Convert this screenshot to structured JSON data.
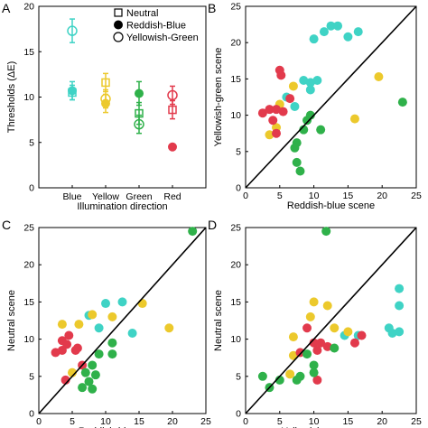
{
  "chart_data": [
    {
      "panel": "A",
      "type": "scatter",
      "xlabel": "Illumination direction",
      "ylabel": "Thresholds (ΔE)",
      "categories": [
        "Blue",
        "Yellow",
        "Green",
        "Red"
      ],
      "ylim": [
        0,
        20
      ],
      "yticks": [
        0,
        5,
        10,
        15,
        20
      ],
      "legend": {
        "placement": "top-right",
        "entries": [
          {
            "marker": "square-open",
            "label": "Neutral"
          },
          {
            "marker": "circle-filled",
            "label": "Reddish-Blue"
          },
          {
            "marker": "circle-open",
            "label": "Yellowish-Green"
          }
        ]
      },
      "colors": {
        "Blue": "#3fd3c5",
        "Yellow": "#ecc92c",
        "Green": "#2fb14a",
        "Red": "#e23a4c"
      },
      "series": [
        {
          "name": "Neutral",
          "marker": "square-open",
          "points": [
            {
              "category": "Blue",
              "y": 10.5,
              "err": 0.8
            },
            {
              "category": "Yellow",
              "y": 11.6,
              "err": 1.0
            },
            {
              "category": "Green",
              "y": 8.2,
              "err": 1.2
            },
            {
              "category": "Red",
              "y": 8.6,
              "err": 1.0
            }
          ]
        },
        {
          "name": "Reddish-Blue",
          "marker": "circle-filled",
          "points": [
            {
              "category": "Blue",
              "y": 10.7,
              "err": 1.0
            },
            {
              "category": "Yellow",
              "y": 9.3,
              "err": 1.0
            },
            {
              "category": "Green",
              "y": 10.4,
              "err": 1.3
            },
            {
              "category": "Red",
              "y": 4.5,
              "err": 0
            }
          ]
        },
        {
          "name": "Yellowish-Green",
          "marker": "circle-open",
          "points": [
            {
              "category": "Blue",
              "y": 17.3,
              "err": 1.3
            },
            {
              "category": "Yellow",
              "y": 9.8,
              "err": 1.0
            },
            {
              "category": "Green",
              "y": 7.0,
              "err": 1.0
            },
            {
              "category": "Red",
              "y": 10.2,
              "err": 1.0
            }
          ]
        }
      ]
    },
    {
      "panel": "B",
      "type": "scatter",
      "xlabel": "Reddish-blue scene",
      "ylabel": "Yellowish-green scene",
      "xlim": [
        0,
        25
      ],
      "ylim": [
        0,
        25
      ],
      "xticks": [
        0,
        5,
        10,
        15,
        20,
        25
      ],
      "yticks": [
        0,
        5,
        10,
        15,
        20,
        25
      ],
      "identity_line": true,
      "points": [
        {
          "x": 10,
          "y": 20.5,
          "color": "#3fd3c5"
        },
        {
          "x": 11.5,
          "y": 21.5,
          "color": "#3fd3c5"
        },
        {
          "x": 12.5,
          "y": 22.3,
          "color": "#3fd3c5"
        },
        {
          "x": 13.5,
          "y": 22.3,
          "color": "#3fd3c5"
        },
        {
          "x": 15,
          "y": 20.8,
          "color": "#3fd3c5"
        },
        {
          "x": 16.5,
          "y": 21.5,
          "color": "#3fd3c5"
        },
        {
          "x": 8.5,
          "y": 14.8,
          "color": "#3fd3c5"
        },
        {
          "x": 9.5,
          "y": 14.5,
          "color": "#3fd3c5"
        },
        {
          "x": 10.5,
          "y": 14.8,
          "color": "#3fd3c5"
        },
        {
          "x": 9.5,
          "y": 13.5,
          "color": "#3fd3c5"
        },
        {
          "x": 6,
          "y": 12.5,
          "color": "#3fd3c5"
        },
        {
          "x": 7.2,
          "y": 11.2,
          "color": "#3fd3c5"
        },
        {
          "x": 19.5,
          "y": 15.3,
          "color": "#ecc92c"
        },
        {
          "x": 16,
          "y": 9.5,
          "color": "#ecc92c"
        },
        {
          "x": 7,
          "y": 14,
          "color": "#ecc92c"
        },
        {
          "x": 5,
          "y": 11.5,
          "color": "#ecc92c"
        },
        {
          "x": 4.5,
          "y": 8.3,
          "color": "#ecc92c"
        },
        {
          "x": 3.5,
          "y": 7.3,
          "color": "#ecc92c"
        },
        {
          "x": 5.2,
          "y": 15.5,
          "color": "#e23a4c"
        },
        {
          "x": 5,
          "y": 16.2,
          "color": "#e23a4c"
        },
        {
          "x": 6.5,
          "y": 12.3,
          "color": "#e23a4c"
        },
        {
          "x": 2.5,
          "y": 10.3,
          "color": "#e23a4c"
        },
        {
          "x": 3.5,
          "y": 10.8,
          "color": "#e23a4c"
        },
        {
          "x": 4.5,
          "y": 10.8,
          "color": "#e23a4c"
        },
        {
          "x": 5.5,
          "y": 10.5,
          "color": "#e23a4c"
        },
        {
          "x": 4,
          "y": 9.3,
          "color": "#e23a4c"
        },
        {
          "x": 4.5,
          "y": 7.5,
          "color": "#e23a4c"
        },
        {
          "x": 23,
          "y": 11.8,
          "color": "#2fb14a"
        },
        {
          "x": 9.5,
          "y": 10,
          "color": "#2fb14a"
        },
        {
          "x": 9,
          "y": 9.3,
          "color": "#2fb14a"
        },
        {
          "x": 8.5,
          "y": 8,
          "color": "#2fb14a"
        },
        {
          "x": 11,
          "y": 8,
          "color": "#2fb14a"
        },
        {
          "x": 7.5,
          "y": 6.2,
          "color": "#2fb14a"
        },
        {
          "x": 7.2,
          "y": 5.5,
          "color": "#2fb14a"
        },
        {
          "x": 7.5,
          "y": 3.5,
          "color": "#2fb14a"
        },
        {
          "x": 8,
          "y": 2.3,
          "color": "#2fb14a"
        }
      ]
    },
    {
      "panel": "C",
      "type": "scatter",
      "xlabel": "Reddish-blue scene",
      "ylabel": "Neutral scene",
      "xlim": [
        0,
        25
      ],
      "ylim": [
        0,
        25
      ],
      "xticks": [
        0,
        5,
        10,
        15,
        20,
        25
      ],
      "yticks": [
        0,
        5,
        10,
        15,
        20,
        25
      ],
      "identity_line": true,
      "points": [
        {
          "x": 23,
          "y": 24.5,
          "color": "#2fb14a"
        },
        {
          "x": 10,
          "y": 14.8,
          "color": "#3fd3c5"
        },
        {
          "x": 12.5,
          "y": 15,
          "color": "#3fd3c5"
        },
        {
          "x": 14,
          "y": 10.8,
          "color": "#3fd3c5"
        },
        {
          "x": 7.5,
          "y": 13.2,
          "color": "#3fd3c5"
        },
        {
          "x": 9,
          "y": 11.5,
          "color": "#3fd3c5"
        },
        {
          "x": 15.5,
          "y": 14.8,
          "color": "#ecc92c"
        },
        {
          "x": 19.5,
          "y": 11.5,
          "color": "#ecc92c"
        },
        {
          "x": 8,
          "y": 13.3,
          "color": "#ecc92c"
        },
        {
          "x": 11,
          "y": 13,
          "color": "#ecc92c"
        },
        {
          "x": 3.5,
          "y": 12,
          "color": "#ecc92c"
        },
        {
          "x": 6,
          "y": 12,
          "color": "#ecc92c"
        },
        {
          "x": 5,
          "y": 5.5,
          "color": "#ecc92c"
        },
        {
          "x": 4.5,
          "y": 10.5,
          "color": "#e23a4c"
        },
        {
          "x": 3.5,
          "y": 9.8,
          "color": "#e23a4c"
        },
        {
          "x": 4.2,
          "y": 9.3,
          "color": "#e23a4c"
        },
        {
          "x": 3.5,
          "y": 8.5,
          "color": "#e23a4c"
        },
        {
          "x": 2.5,
          "y": 8.2,
          "color": "#e23a4c"
        },
        {
          "x": 5.5,
          "y": 8.5,
          "color": "#e23a4c"
        },
        {
          "x": 5.8,
          "y": 8.8,
          "color": "#e23a4c"
        },
        {
          "x": 6.5,
          "y": 6.5,
          "color": "#e23a4c"
        },
        {
          "x": 4,
          "y": 4.5,
          "color": "#e23a4c"
        },
        {
          "x": 11,
          "y": 9.5,
          "color": "#2fb14a"
        },
        {
          "x": 9,
          "y": 8,
          "color": "#2fb14a"
        },
        {
          "x": 11,
          "y": 8,
          "color": "#2fb14a"
        },
        {
          "x": 8,
          "y": 6.5,
          "color": "#2fb14a"
        },
        {
          "x": 7,
          "y": 5.5,
          "color": "#2fb14a"
        },
        {
          "x": 8.5,
          "y": 5.2,
          "color": "#2fb14a"
        },
        {
          "x": 7.5,
          "y": 4.3,
          "color": "#2fb14a"
        },
        {
          "x": 6.5,
          "y": 3.5,
          "color": "#2fb14a"
        },
        {
          "x": 8,
          "y": 3.3,
          "color": "#2fb14a"
        }
      ]
    },
    {
      "panel": "D",
      "type": "scatter",
      "xlabel": "Yellowish-green scene",
      "ylabel": "Neutral scene",
      "xlim": [
        0,
        25
      ],
      "ylim": [
        0,
        25
      ],
      "xticks": [
        0,
        5,
        10,
        15,
        20,
        25
      ],
      "yticks": [
        0,
        5,
        10,
        15,
        20,
        25
      ],
      "identity_line": true,
      "points": [
        {
          "x": 11.8,
          "y": 24.5,
          "color": "#2fb14a"
        },
        {
          "x": 22.5,
          "y": 16.8,
          "color": "#3fd3c5"
        },
        {
          "x": 21,
          "y": 11.5,
          "color": "#3fd3c5"
        },
        {
          "x": 21.5,
          "y": 10.8,
          "color": "#3fd3c5"
        },
        {
          "x": 22.5,
          "y": 14.5,
          "color": "#3fd3c5"
        },
        {
          "x": 22.5,
          "y": 11,
          "color": "#3fd3c5"
        },
        {
          "x": 14.5,
          "y": 10.5,
          "color": "#3fd3c5"
        },
        {
          "x": 16.5,
          "y": 10.5,
          "color": "#3fd3c5"
        },
        {
          "x": 10,
          "y": 15,
          "color": "#ecc92c"
        },
        {
          "x": 12,
          "y": 14.5,
          "color": "#ecc92c"
        },
        {
          "x": 13,
          "y": 11.5,
          "color": "#ecc92c"
        },
        {
          "x": 9.5,
          "y": 13,
          "color": "#ecc92c"
        },
        {
          "x": 15,
          "y": 11,
          "color": "#ecc92c"
        },
        {
          "x": 7,
          "y": 10.3,
          "color": "#ecc92c"
        },
        {
          "x": 7,
          "y": 7.8,
          "color": "#ecc92c"
        },
        {
          "x": 6.5,
          "y": 5.3,
          "color": "#ecc92c"
        },
        {
          "x": 9,
          "y": 11.5,
          "color": "#e23a4c"
        },
        {
          "x": 10,
          "y": 9.5,
          "color": "#e23a4c"
        },
        {
          "x": 11,
          "y": 9.5,
          "color": "#e23a4c"
        },
        {
          "x": 12,
          "y": 9,
          "color": "#e23a4c"
        },
        {
          "x": 16,
          "y": 9.5,
          "color": "#e23a4c"
        },
        {
          "x": 17,
          "y": 10.5,
          "color": "#e23a4c"
        },
        {
          "x": 10.5,
          "y": 8.5,
          "color": "#e23a4c"
        },
        {
          "x": 8,
          "y": 8.2,
          "color": "#e23a4c"
        },
        {
          "x": 10.5,
          "y": 4.5,
          "color": "#e23a4c"
        },
        {
          "x": 13,
          "y": 8.8,
          "color": "#2fb14a"
        },
        {
          "x": 9,
          "y": 8,
          "color": "#2fb14a"
        },
        {
          "x": 10,
          "y": 6.5,
          "color": "#2fb14a"
        },
        {
          "x": 10,
          "y": 5.5,
          "color": "#2fb14a"
        },
        {
          "x": 8,
          "y": 5,
          "color": "#2fb14a"
        },
        {
          "x": 2.5,
          "y": 5,
          "color": "#2fb14a"
        },
        {
          "x": 5,
          "y": 4.5,
          "color": "#2fb14a"
        },
        {
          "x": 7.5,
          "y": 4.5,
          "color": "#2fb14a"
        },
        {
          "x": 3.5,
          "y": 3.5,
          "color": "#2fb14a"
        }
      ]
    }
  ]
}
